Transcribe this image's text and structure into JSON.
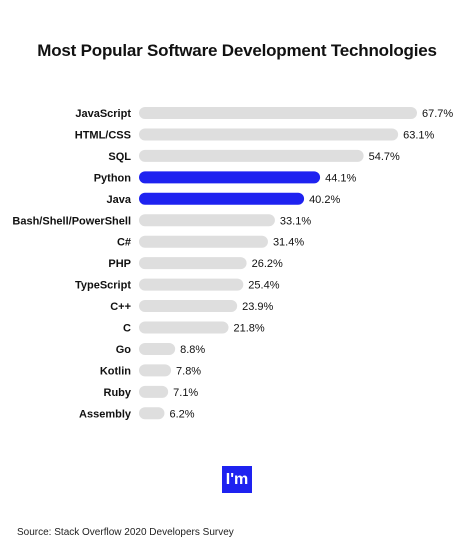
{
  "chart_data": {
    "type": "bar",
    "orientation": "horizontal",
    "title": "Most Popular Software Development Technologies",
    "categories": [
      "JavaScript",
      "HTML/CSS",
      "SQL",
      "Python",
      "Java",
      "Bash/Shell/PowerShell",
      "C#",
      "PHP",
      "TypeScript",
      "C++",
      "C",
      "Go",
      "Kotlin",
      "Ruby",
      "Assembly"
    ],
    "values": [
      67.7,
      63.1,
      54.7,
      44.1,
      40.2,
      33.1,
      31.4,
      26.2,
      25.4,
      23.9,
      21.8,
      8.8,
      7.8,
      7.1,
      6.2
    ],
    "value_labels": [
      "67.7%",
      "63.1%",
      "54.7%",
      "44.1%",
      "40.2%",
      "33.1%",
      "31.4%",
      "26.2%",
      "25.4%",
      "23.9%",
      "21.8%",
      "8.8%",
      "7.8%",
      "7.1%",
      "6.2%"
    ],
    "highlighted": [
      "Python",
      "Java"
    ],
    "xlim": [
      0,
      67.7
    ],
    "grid": false,
    "colors": {
      "bar": "#dedede",
      "highlight": "#1e22f0"
    }
  },
  "logo": {
    "text": "I'm",
    "color": "#1e22f0"
  },
  "source": "Source: Stack Overflow 2020 Developers Survey"
}
